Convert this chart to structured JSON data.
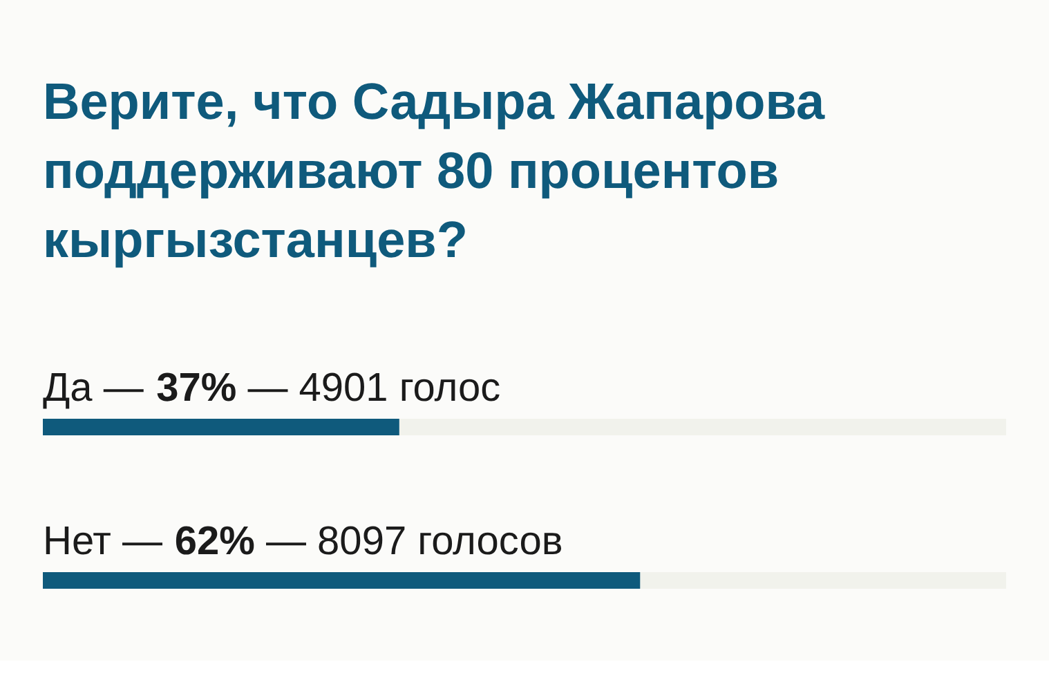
{
  "chart_data": {
    "type": "bar",
    "orientation": "horizontal",
    "title": "Верите, что Садыра Жапарова поддерживают 80 процентов кыргызстанцев?",
    "categories": [
      "Да —",
      "Нет —"
    ],
    "values": [
      37,
      62
    ],
    "color": "#0f5a7c",
    "xlim": [
      0,
      100
    ],
    "tick_labels": false,
    "value_labels": [
      "37%",
      "62%"
    ],
    "annotations": [
      "— 4901 голос",
      "— 8097 голосов"
    ]
  }
}
